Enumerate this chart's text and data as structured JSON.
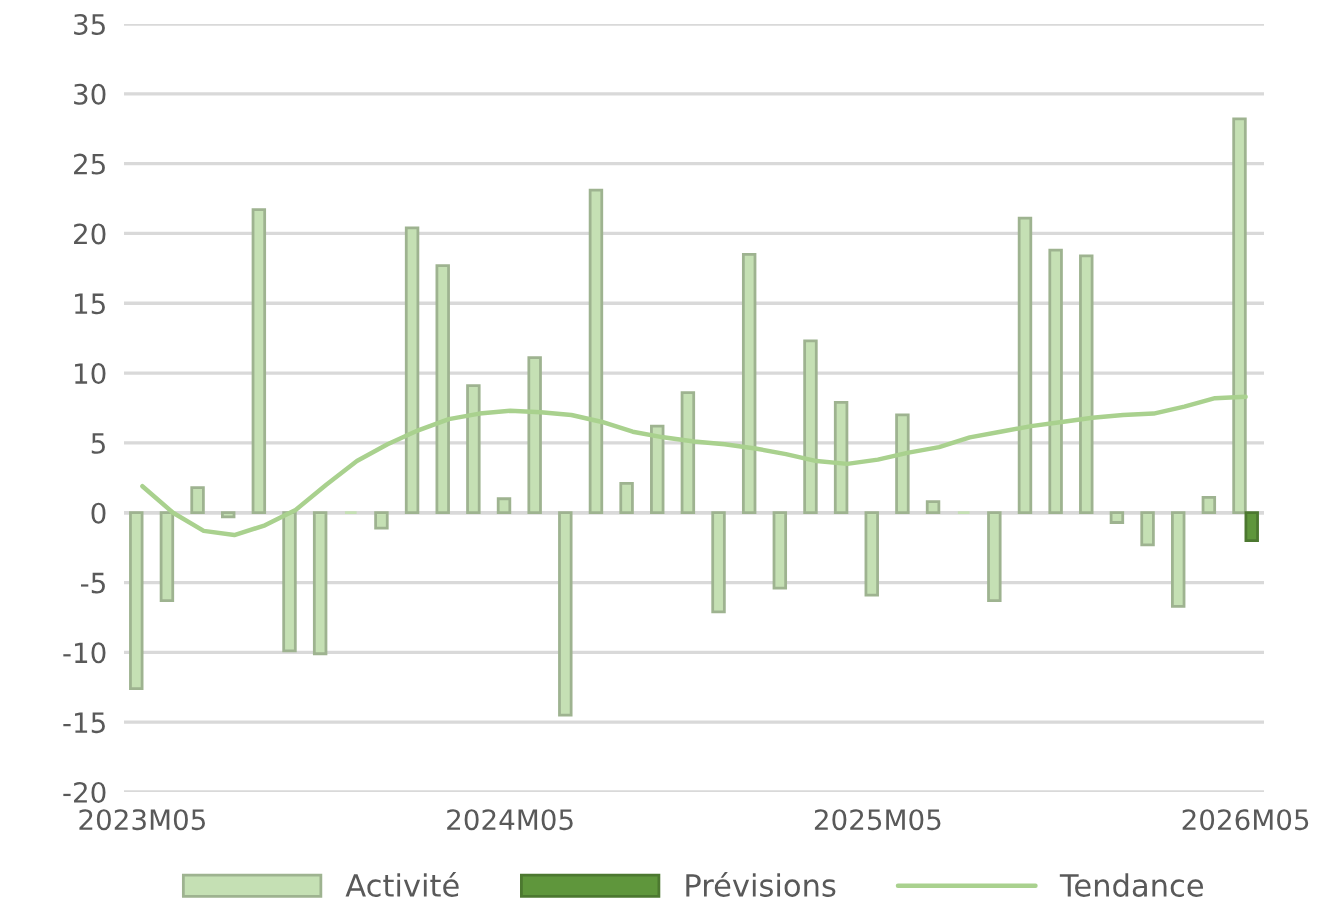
{
  "chart_data": {
    "type": "bar",
    "categories": [
      "2023M05",
      null,
      null,
      null,
      null,
      null,
      null,
      null,
      null,
      null,
      null,
      null,
      "2024M05",
      null,
      null,
      null,
      null,
      null,
      null,
      null,
      null,
      null,
      null,
      null,
      "2025M05",
      null,
      null,
      null,
      null,
      null,
      null,
      null,
      null,
      null,
      null,
      null,
      "2026M05"
    ],
    "series": [
      {
        "name": "Activité",
        "color": "#c5e0b4",
        "values": [
          -12.6,
          -6.3,
          1.8,
          -0.3,
          21.7,
          -9.9,
          -10.1,
          0,
          -1.1,
          20.4,
          17.7,
          9.1,
          1.0,
          11.1,
          -14.5,
          23.1,
          2.1,
          6.2,
          8.6,
          -7.1,
          18.5,
          -5.4,
          12.3,
          7.9,
          -5.9,
          7.0,
          0.8,
          0,
          -6.3,
          21.1,
          18.8,
          18.4,
          -0.7,
          -2.3,
          -6.7,
          1.1,
          28.2
        ]
      },
      {
        "name": "Prévisions",
        "color": "#5f963c",
        "values": [
          null,
          null,
          null,
          null,
          null,
          null,
          null,
          null,
          null,
          null,
          null,
          null,
          null,
          null,
          null,
          null,
          null,
          null,
          null,
          null,
          null,
          null,
          null,
          null,
          null,
          null,
          null,
          null,
          null,
          null,
          null,
          null,
          null,
          null,
          null,
          null,
          -2.0
        ]
      },
      {
        "name": "Tendance",
        "type": "line",
        "color": "#a9d18e",
        "values": [
          1.9,
          0,
          -1.3,
          -1.6,
          -0.9,
          0.2,
          2.0,
          3.7,
          4.9,
          5.9,
          6.7,
          7.1,
          7.3,
          7.2,
          7.0,
          6.5,
          5.8,
          5.4,
          5.1,
          4.9,
          4.6,
          4.2,
          3.7,
          3.5,
          3.8,
          4.3,
          4.7,
          5.4,
          5.8,
          6.2,
          6.5,
          6.8,
          7.0,
          7.1,
          7.6,
          8.2,
          8.3
        ]
      }
    ],
    "ylim": [
      -20,
      35
    ],
    "yticks": [
      -20,
      -15,
      -10,
      -5,
      0,
      5,
      10,
      15,
      20,
      25,
      30,
      35
    ],
    "grid": "y",
    "legend": "bottom"
  }
}
